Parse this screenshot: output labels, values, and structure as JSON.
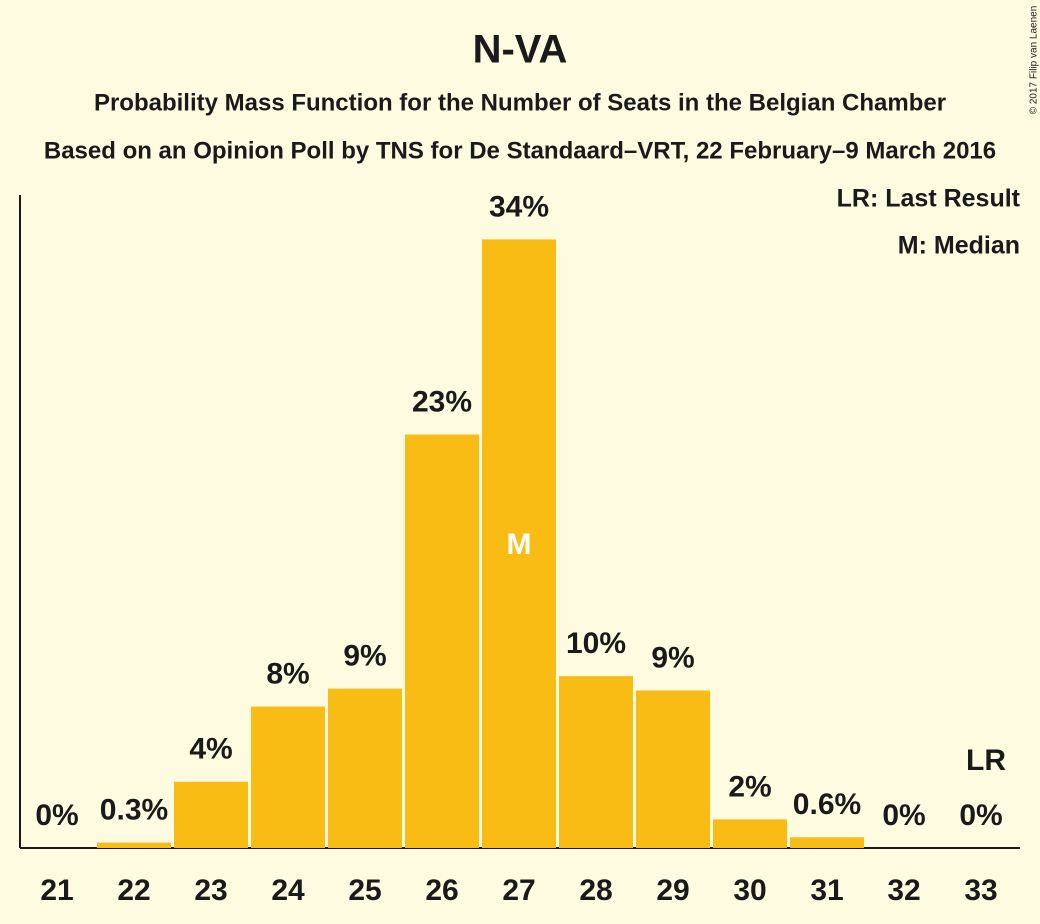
{
  "chart_data": {
    "type": "bar",
    "title": "N-VA",
    "subtitle": "Probability Mass Function for the Number of Seats in the Belgian Chamber",
    "subtitle2": "Based on an Opinion Poll by TNS for De Standaard–VRT, 22 February–9 March 2016",
    "legend": [
      "LR: Last Result",
      "M: Median"
    ],
    "copyright": "© 2017 Filip van Laenen",
    "categories": [
      "21",
      "22",
      "23",
      "24",
      "25",
      "26",
      "27",
      "28",
      "29",
      "30",
      "31",
      "32",
      "33"
    ],
    "values": [
      0,
      0.3,
      3.7,
      7.9,
      8.9,
      23.1,
      34,
      9.6,
      8.8,
      1.6,
      0.6,
      0,
      0
    ],
    "value_labels": [
      "0%",
      "0.3%",
      "4%",
      "8%",
      "9%",
      "23%",
      "34%",
      "10%",
      "9%",
      "2%",
      "0.6%",
      "0%",
      "0%"
    ],
    "color": "#f9bc15",
    "median": {
      "label": "M",
      "seats": 27
    },
    "last_result": {
      "label": "LR",
      "seats": 33
    }
  }
}
